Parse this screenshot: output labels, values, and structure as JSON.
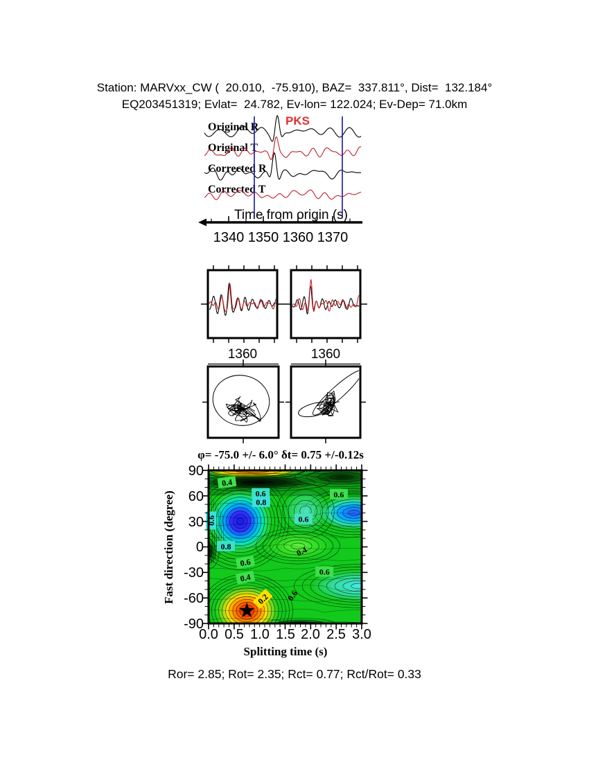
{
  "header": {
    "line1": "Station: MARVxx_CW (  20.010,  -75.910), BAZ=  337.811°, Dist=  132.184°",
    "line2": "EQ203451319; Evlat=  24.782, Ev-lon= 122.024; Ev-Dep= 71.0km"
  },
  "waveform_panel": {
    "phase_label": "PKS",
    "phase_label_color": "#e03030",
    "trace_labels": [
      "Original R",
      "Original T",
      "Corrected R",
      "Corrected T"
    ],
    "trace_colors": [
      "#000000",
      "#c02028",
      "#000000",
      "#c02028"
    ],
    "window_line_color": "#2222aa",
    "window_lines_s": [
      1347.4,
      1372.8
    ],
    "time_axis": {
      "label": "Time from origin (s)",
      "tick_labels": [
        "1340",
        "1350",
        "1360",
        "1370"
      ],
      "tick_values": [
        1340,
        1350,
        1360,
        1370
      ],
      "minor_tick_values": [
        1335,
        1345,
        1355,
        1365,
        1375
      ]
    },
    "traces": [
      {
        "name": "Original R",
        "component": "R",
        "spike_time_s": 1354.0,
        "spike_amp": 26,
        "noise_amp": 7.5,
        "seed": 11
      },
      {
        "name": "Original T",
        "component": "T",
        "spike_time_s": 1353.6,
        "spike_amp": 19,
        "noise_amp": 7.5,
        "seed": 29
      },
      {
        "name": "Corrected R",
        "component": "R",
        "spike_time_s": 1353.2,
        "spike_amp": 30,
        "noise_amp": 8.0,
        "seed": 41
      },
      {
        "name": "Corrected T",
        "component": "T",
        "spike_time_s": null,
        "spike_amp": 0,
        "noise_amp": 5.0,
        "seed": 53
      }
    ]
  },
  "zoom_panels": {
    "tick_labels": [
      "1360",
      "1360"
    ],
    "series_colors": [
      "#000000",
      "#c02028"
    ],
    "panels": [
      {
        "spike_u": 0.3,
        "black_amp": 22,
        "red_amp": 30
      },
      {
        "spike_u": 0.27,
        "black_amp": 24,
        "red_amp": 31
      }
    ]
  },
  "chart_data": {
    "type": "contour",
    "title": "φ= -75.0 +/- 6.0° δt= 0.75 +/-0.12s",
    "xlabel": "Splitting time (s)",
    "ylabel": "Fast direction (degree)",
    "xlim": [
      0.0,
      3.0
    ],
    "ylim": [
      -90,
      90
    ],
    "xtick_labels": [
      "0.0",
      "0.5",
      "1.0",
      "1.5",
      "2.0",
      "2.5",
      "3.0"
    ],
    "ytick_labels": [
      "90",
      "60",
      "30",
      "0",
      "-30",
      "-60",
      "-90"
    ],
    "grid": false,
    "best_fit": {
      "fast_direction_deg": -75.0,
      "fast_direction_err_deg": 6.0,
      "splitting_time_s": 0.75,
      "splitting_time_err_s": 0.12
    },
    "star": {
      "t_s": 0.75,
      "phi_deg": -75
    },
    "labeled_contour_levels": [
      0.2,
      0.4,
      0.6,
      0.8
    ],
    "features": [
      {
        "kind": "maximum (red bullseye with star)",
        "t_s": 0.75,
        "phi_deg": -75,
        "level": "<0.2"
      },
      {
        "kind": "deep minimum (blue)",
        "t_s": 0.62,
        "phi_deg": 30,
        "level": ">0.8"
      },
      {
        "kind": "minimum (blue)",
        "t_s": 2.85,
        "phi_deg": 40,
        "level": ">0.7"
      },
      {
        "kind": "low (cyan trough)",
        "t_s": 2.95,
        "phi_deg": -46,
        "level": "~0.7"
      },
      {
        "kind": "closed low (green)",
        "t_s": 1.75,
        "phi_deg": 0,
        "level": "0.4"
      },
      {
        "kind": "dark band (black)",
        "t_s": 1.0,
        "phi_deg": 75,
        "level": "high"
      }
    ],
    "contour_labels": [
      {
        "text": "0.4",
        "t": 0.36,
        "phi": 76,
        "bg": "#3ce04a",
        "rot": -8
      },
      {
        "text": "0.6",
        "t": 1.02,
        "phi": 63,
        "bg": "#3ce0c8",
        "rot": 0
      },
      {
        "text": "0.8",
        "t": 1.03,
        "phi": 53,
        "bg": "#3ce0dc",
        "rot": 0
      },
      {
        "text": "0.6",
        "t": 0.05,
        "phi": 31,
        "bg": "#3ce0dc",
        "rot": -90
      },
      {
        "text": "0.6",
        "t": 2.55,
        "phi": 62,
        "bg": "#3ce04a",
        "rot": 0
      },
      {
        "text": "0.6",
        "t": 1.86,
        "phi": 33,
        "bg": "#45e0c0",
        "rot": 0
      },
      {
        "text": "0.8",
        "t": 0.34,
        "phi": 1,
        "bg": "#3ce0c8",
        "rot": 0
      },
      {
        "text": "0.6",
        "t": 0.72,
        "phi": -18,
        "bg": "#3ce04a",
        "rot": -10
      },
      {
        "text": "0.4",
        "t": 1.82,
        "phi": -5,
        "bg": "",
        "rot": -25
      },
      {
        "text": "0.4",
        "t": 0.72,
        "phi": -36,
        "bg": "#3ce04a",
        "rot": -12
      },
      {
        "text": "0.2",
        "t": 1.06,
        "phi": -61,
        "bg": "#ffdf00",
        "rot": -45
      },
      {
        "text": "0.6",
        "t": 2.27,
        "phi": -29,
        "bg": "#3ce04a",
        "rot": 0
      },
      {
        "text": "0.6",
        "t": 1.64,
        "phi": -57,
        "bg": "",
        "rot": -55
      }
    ]
  },
  "footer": {
    "text": "Ror= 2.85; Rot= 2.35; Rct= 0.77; Rct/Rot= 0.33"
  }
}
